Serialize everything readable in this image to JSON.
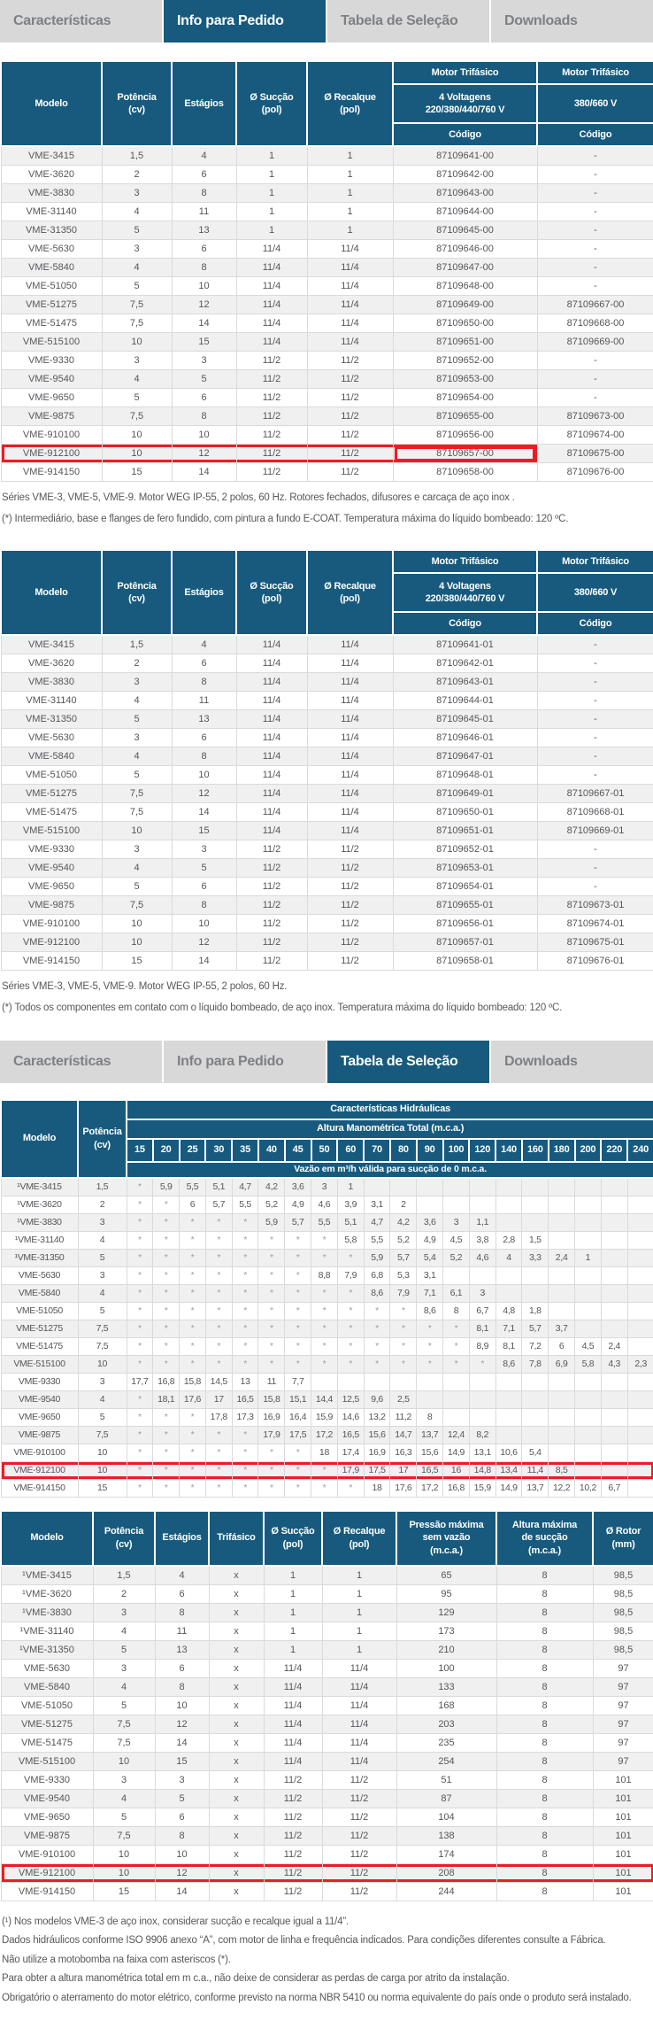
{
  "colors": {
    "accent_blue": "#175a7d",
    "tab_gray": "#d8d8d8",
    "tab_text_gray": "#7e8083",
    "highlight_red": "#ed1c24",
    "row_stripe": "#f0f0f0",
    "body_text": "#58595b"
  },
  "tabs": {
    "items": [
      {
        "label": "Características"
      },
      {
        "label": "Info para Pedido"
      },
      {
        "label": "Tabela de Seleção"
      },
      {
        "label": "Downloads"
      }
    ],
    "bar_top_active": "Info para Pedido",
    "bar_bottom_active": "Tabela de Seleção"
  },
  "order_header": {
    "modelo": "Modelo",
    "potencia": "Potência\n(cv)",
    "estagios": "Estágios",
    "succao": "Ø Sucção\n(pol)",
    "recalque": "Ø Recalque\n(pol)",
    "motor_a_title": "Motor Trifásico",
    "motor_a_sub": "4 Voltagens\n220/380/440/760 V",
    "motor_b_title": "Motor Trifásico",
    "motor_b_sub": "380/660 V",
    "codigo": "Código"
  },
  "selection_header": {
    "modelo": "Modelo",
    "potencia": "Potência\n(cv)",
    "group": "Características Hidráulicas",
    "amt": "Altura Manométrica Total (m.c.a.)",
    "ticks": [
      "15",
      "20",
      "25",
      "30",
      "35",
      "40",
      "45",
      "50",
      "60",
      "70",
      "80",
      "90",
      "100",
      "120",
      "140",
      "160",
      "180",
      "200",
      "220",
      "240"
    ],
    "flow": "Vazão em m³/h válida para sucção de 0 m.c.a."
  },
  "spec_header": [
    "Modelo",
    "Potência\n(cv)",
    "Estágios",
    "Trifásico",
    "Ø Sucção\n(pol)",
    "Ø Recalque\n(pol)",
    "Pressão máxima\nsem vazão\n(m.c.a.)",
    "Altura máxima\nde sucção\n(m.c.a.)",
    "Ø Rotor\n(mm)"
  ],
  "tables": {
    "order_std": {
      "rows": [
        [
          "VME-3415",
          "1,5",
          "4",
          "1",
          "1",
          "87109641-00",
          "-"
        ],
        [
          "VME-3620",
          "2",
          "6",
          "1",
          "1",
          "87109642-00",
          "-"
        ],
        [
          "VME-3830",
          "3",
          "8",
          "1",
          "1",
          "87109643-00",
          "-"
        ],
        [
          "VME-31140",
          "4",
          "11",
          "1",
          "1",
          "87109644-00",
          "-"
        ],
        [
          "VME-31350",
          "5",
          "13",
          "1",
          "1",
          "87109645-00",
          "-"
        ],
        [
          "VME-5630",
          "3",
          "6",
          "11/4",
          "11/4",
          "87109646-00",
          "-"
        ],
        [
          "VME-5840",
          "4",
          "8",
          "11/4",
          "11/4",
          "87109647-00",
          "-"
        ],
        [
          "VME-51050",
          "5",
          "10",
          "11/4",
          "11/4",
          "87109648-00",
          "-"
        ],
        [
          "VME-51275",
          "7,5",
          "12",
          "11/4",
          "11/4",
          "87109649-00",
          "87109667-00"
        ],
        [
          "VME-51475",
          "7,5",
          "14",
          "11/4",
          "11/4",
          "87109650-00",
          "87109668-00"
        ],
        [
          "VME-515100",
          "10",
          "15",
          "11/4",
          "11/4",
          "87109651-00",
          "87109669-00"
        ],
        [
          "VME-9330",
          "3",
          "3",
          "11/2",
          "11/2",
          "87109652-00",
          "-"
        ],
        [
          "VME-9540",
          "4",
          "5",
          "11/2",
          "11/2",
          "87109653-00",
          "-"
        ],
        [
          "VME-9650",
          "5",
          "6",
          "11/2",
          "11/2",
          "87109654-00",
          "-"
        ],
        [
          "VME-9875",
          "7,5",
          "8",
          "11/2",
          "11/2",
          "87109655-00",
          "87109673-00"
        ],
        [
          "VME-910100",
          "10",
          "10",
          "11/2",
          "11/2",
          "87109656-00",
          "87109674-00"
        ],
        [
          "VME-912100",
          "10",
          "12",
          "11/2",
          "11/2",
          "87109657-00",
          "87109675-00"
        ],
        [
          "VME-914150",
          "15",
          "14",
          "11/2",
          "11/2",
          "87109658-00",
          "87109676-00"
        ]
      ],
      "highlight": {
        "model": "VME-912100",
        "from": 0,
        "to": 5,
        "emph": 5
      },
      "notes": [
        "Séries VME-3, VME-5, VME-9. Motor WEG IP-55, 2 polos, 60 Hz. Rotores fechados, difusores e carcaça de aço inox .",
        "(*) Intermediário, base e flanges de fero fundido, com pintura a fundo E-COAT. Temperatura máxima do líquido bombeado: 120 ºC."
      ]
    },
    "order_inox": {
      "rows": [
        [
          "VME-3415",
          "1,5",
          "4",
          "11/4",
          "11/4",
          "87109641-01",
          "-"
        ],
        [
          "VME-3620",
          "2",
          "6",
          "11/4",
          "11/4",
          "87109642-01",
          "-"
        ],
        [
          "VME-3830",
          "3",
          "8",
          "11/4",
          "11/4",
          "87109643-01",
          "-"
        ],
        [
          "VME-31140",
          "4",
          "11",
          "11/4",
          "11/4",
          "87109644-01",
          "-"
        ],
        [
          "VME-31350",
          "5",
          "13",
          "11/4",
          "11/4",
          "87109645-01",
          "-"
        ],
        [
          "VME-5630",
          "3",
          "6",
          "11/4",
          "11/4",
          "87109646-01",
          "-"
        ],
        [
          "VME-5840",
          "4",
          "8",
          "11/4",
          "11/4",
          "87109647-01",
          "-"
        ],
        [
          "VME-51050",
          "5",
          "10",
          "11/4",
          "11/4",
          "87109648-01",
          "-"
        ],
        [
          "VME-51275",
          "7,5",
          "12",
          "11/4",
          "11/4",
          "87109649-01",
          "87109667-01"
        ],
        [
          "VME-51475",
          "7,5",
          "14",
          "11/4",
          "11/4",
          "87109650-01",
          "87109668-01"
        ],
        [
          "VME-515100",
          "10",
          "15",
          "11/4",
          "11/4",
          "87109651-01",
          "87109669-01"
        ],
        [
          "VME-9330",
          "3",
          "3",
          "11/2",
          "11/2",
          "87109652-01",
          "-"
        ],
        [
          "VME-9540",
          "4",
          "5",
          "11/2",
          "11/2",
          "87109653-01",
          "-"
        ],
        [
          "VME-9650",
          "5",
          "6",
          "11/2",
          "11/2",
          "87109654-01",
          "-"
        ],
        [
          "VME-9875",
          "7,5",
          "8",
          "11/2",
          "11/2",
          "87109655-01",
          "87109673-01"
        ],
        [
          "VME-910100",
          "10",
          "10",
          "11/2",
          "11/2",
          "87109656-01",
          "87109674-01"
        ],
        [
          "VME-912100",
          "10",
          "12",
          "11/2",
          "11/2",
          "87109657-01",
          "87109675-01"
        ],
        [
          "VME-914150",
          "15",
          "14",
          "11/2",
          "11/2",
          "87109658-01",
          "87109676-01"
        ]
      ],
      "highlight": null,
      "notes": [
        "Séries VME-3, VME-5, VME-9. Motor WEG IP-55, 2 polos, 60 Hz.",
        "(*) Todos os componentes em contato com o líquido bombeado, de aço inox. Temperatura máxima do líquido bombeado: 120 ºC."
      ]
    },
    "selection": {
      "rows": [
        [
          "¹VME-3415",
          "1,5",
          "*",
          "5,9",
          "5,5",
          "5,1",
          "4,7",
          "4,2",
          "3,6",
          "3",
          "1",
          "",
          "",
          "",
          "",
          "",
          "",
          "",
          "",
          "",
          "",
          ""
        ],
        [
          "¹VME-3620",
          "2",
          "*",
          "*",
          "6",
          "5,7",
          "5,5",
          "5,2",
          "4,9",
          "4,6",
          "3,9",
          "3,1",
          "2",
          "",
          "",
          "",
          "",
          "",
          "",
          "",
          "",
          ""
        ],
        [
          "¹VME-3830",
          "3",
          "*",
          "*",
          "*",
          "*",
          "*",
          "5,9",
          "5,7",
          "5,5",
          "5,1",
          "4,7",
          "4,2",
          "3,6",
          "3",
          "1,1",
          "",
          "",
          "",
          "",
          "",
          ""
        ],
        [
          "¹VME-31140",
          "4",
          "*",
          "*",
          "*",
          "*",
          "*",
          "*",
          "*",
          "*",
          "5,8",
          "5,5",
          "5,2",
          "4,9",
          "4,5",
          "3,8",
          "2,8",
          "1,5",
          "",
          "",
          "",
          ""
        ],
        [
          "¹VME-31350",
          "5",
          "*",
          "*",
          "*",
          "*",
          "*",
          "*",
          "*",
          "*",
          "*",
          "5,9",
          "5,7",
          "5,4",
          "5,2",
          "4,6",
          "4",
          "3,3",
          "2,4",
          "1",
          "",
          ""
        ],
        [
          "VME-5630",
          "3",
          "*",
          "*",
          "*",
          "*",
          "*",
          "*",
          "*",
          "8,8",
          "7,9",
          "6,8",
          "5,3",
          "3,1",
          "",
          "",
          "",
          "",
          "",
          "",
          "",
          ""
        ],
        [
          "VME-5840",
          "4",
          "*",
          "*",
          "*",
          "*",
          "*",
          "*",
          "*",
          "*",
          "*",
          "8,6",
          "7,9",
          "7,1",
          "6,1",
          "3",
          "",
          "",
          "",
          "",
          "",
          ""
        ],
        [
          "VME-51050",
          "5",
          "*",
          "*",
          "*",
          "*",
          "*",
          "*",
          "*",
          "*",
          "*",
          "*",
          "*",
          "8,6",
          "8",
          "6,7",
          "4,8",
          "1,8",
          "",
          "",
          "",
          ""
        ],
        [
          "VME-51275",
          "7,5",
          "*",
          "*",
          "*",
          "*",
          "*",
          "*",
          "*",
          "*",
          "*",
          "*",
          "*",
          "*",
          "*",
          "8,1",
          "7,1",
          "5,7",
          "3,7",
          "",
          "",
          ""
        ],
        [
          "VME-51475",
          "7,5",
          "*",
          "*",
          "*",
          "*",
          "*",
          "*",
          "*",
          "*",
          "*",
          "*",
          "*",
          "*",
          "*",
          "8,9",
          "8,1",
          "7,2",
          "6",
          "4,5",
          "2,4",
          ""
        ],
        [
          "VME-515100",
          "10",
          "*",
          "*",
          "*",
          "*",
          "*",
          "*",
          "*",
          "*",
          "*",
          "*",
          "*",
          "*",
          "*",
          "*",
          "8,6",
          "7,8",
          "6,9",
          "5,8",
          "4,3",
          "2,3"
        ],
        [
          "VME-9330",
          "3",
          "17,7",
          "16,8",
          "15,8",
          "14,5",
          "13",
          "11",
          "7,7",
          "",
          "",
          "",
          "",
          "",
          "",
          "",
          "",
          "",
          "",
          "",
          "",
          ""
        ],
        [
          "VME-9540",
          "4",
          "*",
          "18,1",
          "17,6",
          "17",
          "16,5",
          "15,8",
          "15,1",
          "14,4",
          "12,5",
          "9,6",
          "2,5",
          "",
          "",
          "",
          "",
          "",
          "",
          "",
          "",
          ""
        ],
        [
          "VME-9650",
          "5",
          "*",
          "*",
          "*",
          "17,8",
          "17,3",
          "16,9",
          "16,4",
          "15,9",
          "14,6",
          "13,2",
          "11,2",
          "8",
          "",
          "",
          "",
          "",
          "",
          "",
          "",
          ""
        ],
        [
          "VME-9875",
          "7,5",
          "*",
          "*",
          "*",
          "*",
          "*",
          "17,9",
          "17,5",
          "17,2",
          "16,5",
          "15,6",
          "14,7",
          "13,7",
          "12,4",
          "8,2",
          "",
          "",
          "",
          "",
          "",
          ""
        ],
        [
          "VME-910100",
          "10",
          "*",
          "*",
          "*",
          "*",
          "*",
          "*",
          "*",
          "18",
          "17,4",
          "16,9",
          "16,3",
          "15,6",
          "14,9",
          "13,1",
          "10,6",
          "5,4",
          "",
          "",
          "",
          ""
        ],
        [
          "VME-912100",
          "10",
          "*",
          "*",
          "*",
          "*",
          "*",
          "*",
          "*",
          "*",
          "17,9",
          "17,5",
          "17",
          "16,5",
          "16",
          "14,8",
          "13,4",
          "11,4",
          "8,5",
          "",
          "",
          ""
        ],
        [
          "VME-914150",
          "15",
          "*",
          "*",
          "*",
          "*",
          "*",
          "*",
          "*",
          "*",
          "*",
          "18",
          "17,6",
          "17,2",
          "16,8",
          "15,9",
          "14,9",
          "13,7",
          "12,2",
          "10,2",
          "6,7",
          ""
        ]
      ],
      "highlight": {
        "model": "VME-912100",
        "from": 0,
        "to": 21,
        "emph": null
      }
    },
    "spec": {
      "rows": [
        [
          "¹VME-3415",
          "1,5",
          "4",
          "x",
          "1",
          "1",
          "65",
          "8",
          "98,5"
        ],
        [
          "¹VME-3620",
          "2",
          "6",
          "x",
          "1",
          "1",
          "95",
          "8",
          "98,5"
        ],
        [
          "¹VME-3830",
          "3",
          "8",
          "x",
          "1",
          "1",
          "129",
          "8",
          "98,5"
        ],
        [
          "¹VME-31140",
          "4",
          "11",
          "x",
          "1",
          "1",
          "173",
          "8",
          "98,5"
        ],
        [
          "¹VME-31350",
          "5",
          "13",
          "x",
          "1",
          "1",
          "210",
          "8",
          "98,5"
        ],
        [
          "VME-5630",
          "3",
          "6",
          "x",
          "11/4",
          "11/4",
          "100",
          "8",
          "97"
        ],
        [
          "VME-5840",
          "4",
          "8",
          "x",
          "11/4",
          "11/4",
          "133",
          "8",
          "97"
        ],
        [
          "VME-51050",
          "5",
          "10",
          "x",
          "11/4",
          "11/4",
          "168",
          "8",
          "97"
        ],
        [
          "VME-51275",
          "7,5",
          "12",
          "x",
          "11/4",
          "11/4",
          "203",
          "8",
          "97"
        ],
        [
          "VME-51475",
          "7,5",
          "14",
          "x",
          "11/4",
          "11/4",
          "235",
          "8",
          "97"
        ],
        [
          "VME-515100",
          "10",
          "15",
          "x",
          "11/4",
          "11/4",
          "254",
          "8",
          "97"
        ],
        [
          "VME-9330",
          "3",
          "3",
          "x",
          "11/2",
          "11/2",
          "51",
          "8",
          "101"
        ],
        [
          "VME-9540",
          "4",
          "5",
          "x",
          "11/2",
          "11/2",
          "87",
          "8",
          "101"
        ],
        [
          "VME-9650",
          "5",
          "6",
          "x",
          "11/2",
          "11/2",
          "104",
          "8",
          "101"
        ],
        [
          "VME-9875",
          "7,5",
          "8",
          "x",
          "11/2",
          "11/2",
          "138",
          "8",
          "101"
        ],
        [
          "VME-910100",
          "10",
          "10",
          "x",
          "11/2",
          "11/2",
          "174",
          "8",
          "101"
        ],
        [
          "VME-912100",
          "10",
          "12",
          "x",
          "11/2",
          "11/2",
          "208",
          "8",
          "101"
        ],
        [
          "VME-914150",
          "15",
          "14",
          "x",
          "11/2",
          "11/2",
          "244",
          "8",
          "101"
        ]
      ],
      "highlight": {
        "model": "VME-912100",
        "from": 0,
        "to": 8,
        "emph": null
      }
    }
  },
  "footer_notes": [
    "(¹) Nos modelos VME-3 de aço inox, considerar sucção e recalque igual a 11/4”.",
    "Dados hidráulicos conforme ISO 9906 anexo “A”, com motor de linha e frequência indicados. Para condições diferentes consulte a Fábrica.",
    "Não utilize a motobomba na faixa com asteriscos (*).",
    "Para obter a altura manométrica total em m c.a., não deixe de considerar as perdas de carga por atrito da instalação.",
    "Obrigatório o aterramento do motor elétrico, conforme previsto na norma NBR 5410 ou norma equivalente do país onde o produto será instalado."
  ]
}
